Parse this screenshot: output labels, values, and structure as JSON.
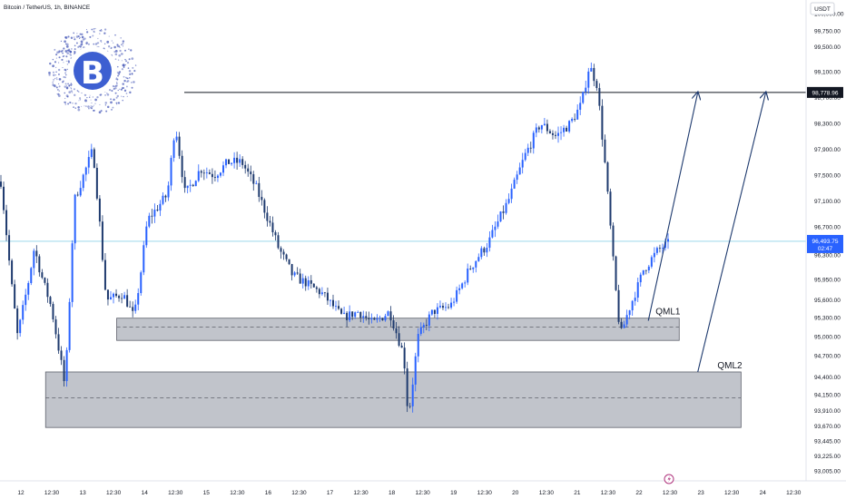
{
  "header": {
    "symbol_title": "Bitcoin / TetherUS, 1h, BINANCE",
    "currency": "USDT"
  },
  "logo": {
    "glyph": "B",
    "name": "bitcoin-logo"
  },
  "colors": {
    "up": "#2962ff",
    "down": "#1e3a6e",
    "zone_fill": "#b2b5be",
    "line": "#131722",
    "current_line": "#8fd3e8",
    "current_tag": "#2962ff",
    "arrow": "#1e3a6e"
  },
  "annotations": {
    "qml1_label": "QML1",
    "qml2_label": "QML2",
    "resistance_price": "98,778.96",
    "current_price": "96,493.75",
    "countdown": "02:47"
  },
  "chart_data": {
    "type": "candlestick",
    "title": "Bitcoin / TetherUS, 1h, BINANCE",
    "ylabel": "USDT",
    "ylim": [
      93000,
      100100
    ],
    "y_ticks": [
      "93,005.00",
      "93,225.00",
      "93,445.00",
      "93,670.00",
      "93,910.00",
      "94,150.00",
      "94,400.00",
      "94,700.00",
      "95,000.00",
      "95,300.00",
      "95,600.00",
      "95,950.00",
      "96,300.00",
      "96,700.00",
      "97,100.00",
      "97,500.00",
      "97,900.00",
      "98,300.00",
      "98,700.00",
      "99,100.00",
      "99,500.00",
      "99,750.00",
      "100,000.00"
    ],
    "x_ticks": [
      "12",
      "12:30",
      "13",
      "12:30",
      "14",
      "12:30",
      "15",
      "12:30",
      "16",
      "12:30",
      "17",
      "12:30",
      "18",
      "12:30",
      "19",
      "12:30",
      "20",
      "12:30",
      "21",
      "12:30",
      "22",
      "12:30",
      "23",
      "12:30",
      "24",
      "12:30"
    ],
    "x_range": [
      "12 00:00",
      "24 12:30"
    ],
    "path_points": [
      [
        0,
        97400
      ],
      [
        1.5,
        95000
      ],
      [
        3,
        96400
      ],
      [
        4.5,
        95500
      ],
      [
        5.8,
        94230
      ],
      [
        6.6,
        97100
      ],
      [
        8.3,
        97900
      ],
      [
        9.5,
        95600
      ],
      [
        11,
        95700
      ],
      [
        12,
        95300
      ],
      [
        13.2,
        96800
      ],
      [
        15,
        97200
      ],
      [
        15.7,
        98300
      ],
      [
        16.6,
        97200
      ],
      [
        18,
        97600
      ],
      [
        19.2,
        97500
      ],
      [
        20.5,
        97700
      ],
      [
        21.7,
        97700
      ],
      [
        23,
        97300
      ],
      [
        25,
        96400
      ],
      [
        26.3,
        96000
      ],
      [
        27.4,
        95900
      ],
      [
        29,
        95700
      ],
      [
        30.8,
        95300
      ],
      [
        32.2,
        95400
      ],
      [
        33.5,
        95200
      ],
      [
        35,
        95400
      ],
      [
        36.3,
        94700
      ],
      [
        36.7,
        93800
      ],
      [
        37.6,
        95000
      ],
      [
        38.9,
        95400
      ],
      [
        40.5,
        95500
      ],
      [
        42.2,
        96100
      ],
      [
        44,
        96500
      ],
      [
        45.7,
        97100
      ],
      [
        47.2,
        97800
      ],
      [
        48.6,
        98300
      ],
      [
        50,
        98100
      ],
      [
        51.3,
        98300
      ],
      [
        52.3,
        98600
      ],
      [
        53,
        99200
      ],
      [
        53.7,
        98900
      ],
      [
        54.4,
        97700
      ],
      [
        55.1,
        96300
      ],
      [
        55.8,
        95000
      ],
      [
        56.5,
        95400
      ],
      [
        57.9,
        96100
      ],
      [
        59.4,
        96400
      ],
      [
        60.1,
        96450
      ]
    ],
    "resistance_level": 98778.96,
    "current_price": 96493.75,
    "zones": [
      {
        "name": "QML1",
        "low": 94940,
        "high": 95290,
        "mid": 95150,
        "from_day": 13.55,
        "to_day": 22.65
      },
      {
        "name": "QML2",
        "low": 93650,
        "high": 94470,
        "mid": 94100,
        "from_day": 12.4,
        "to_day": 23.65
      }
    ],
    "projection_arrows": [
      {
        "from": [
          22.15,
          95250
        ],
        "to": [
          22.95,
          98778.96
        ]
      },
      {
        "from": [
          22.95,
          94470
        ],
        "to": [
          24.05,
          98778.96
        ]
      }
    ],
    "grid": false,
    "legend": "none"
  }
}
